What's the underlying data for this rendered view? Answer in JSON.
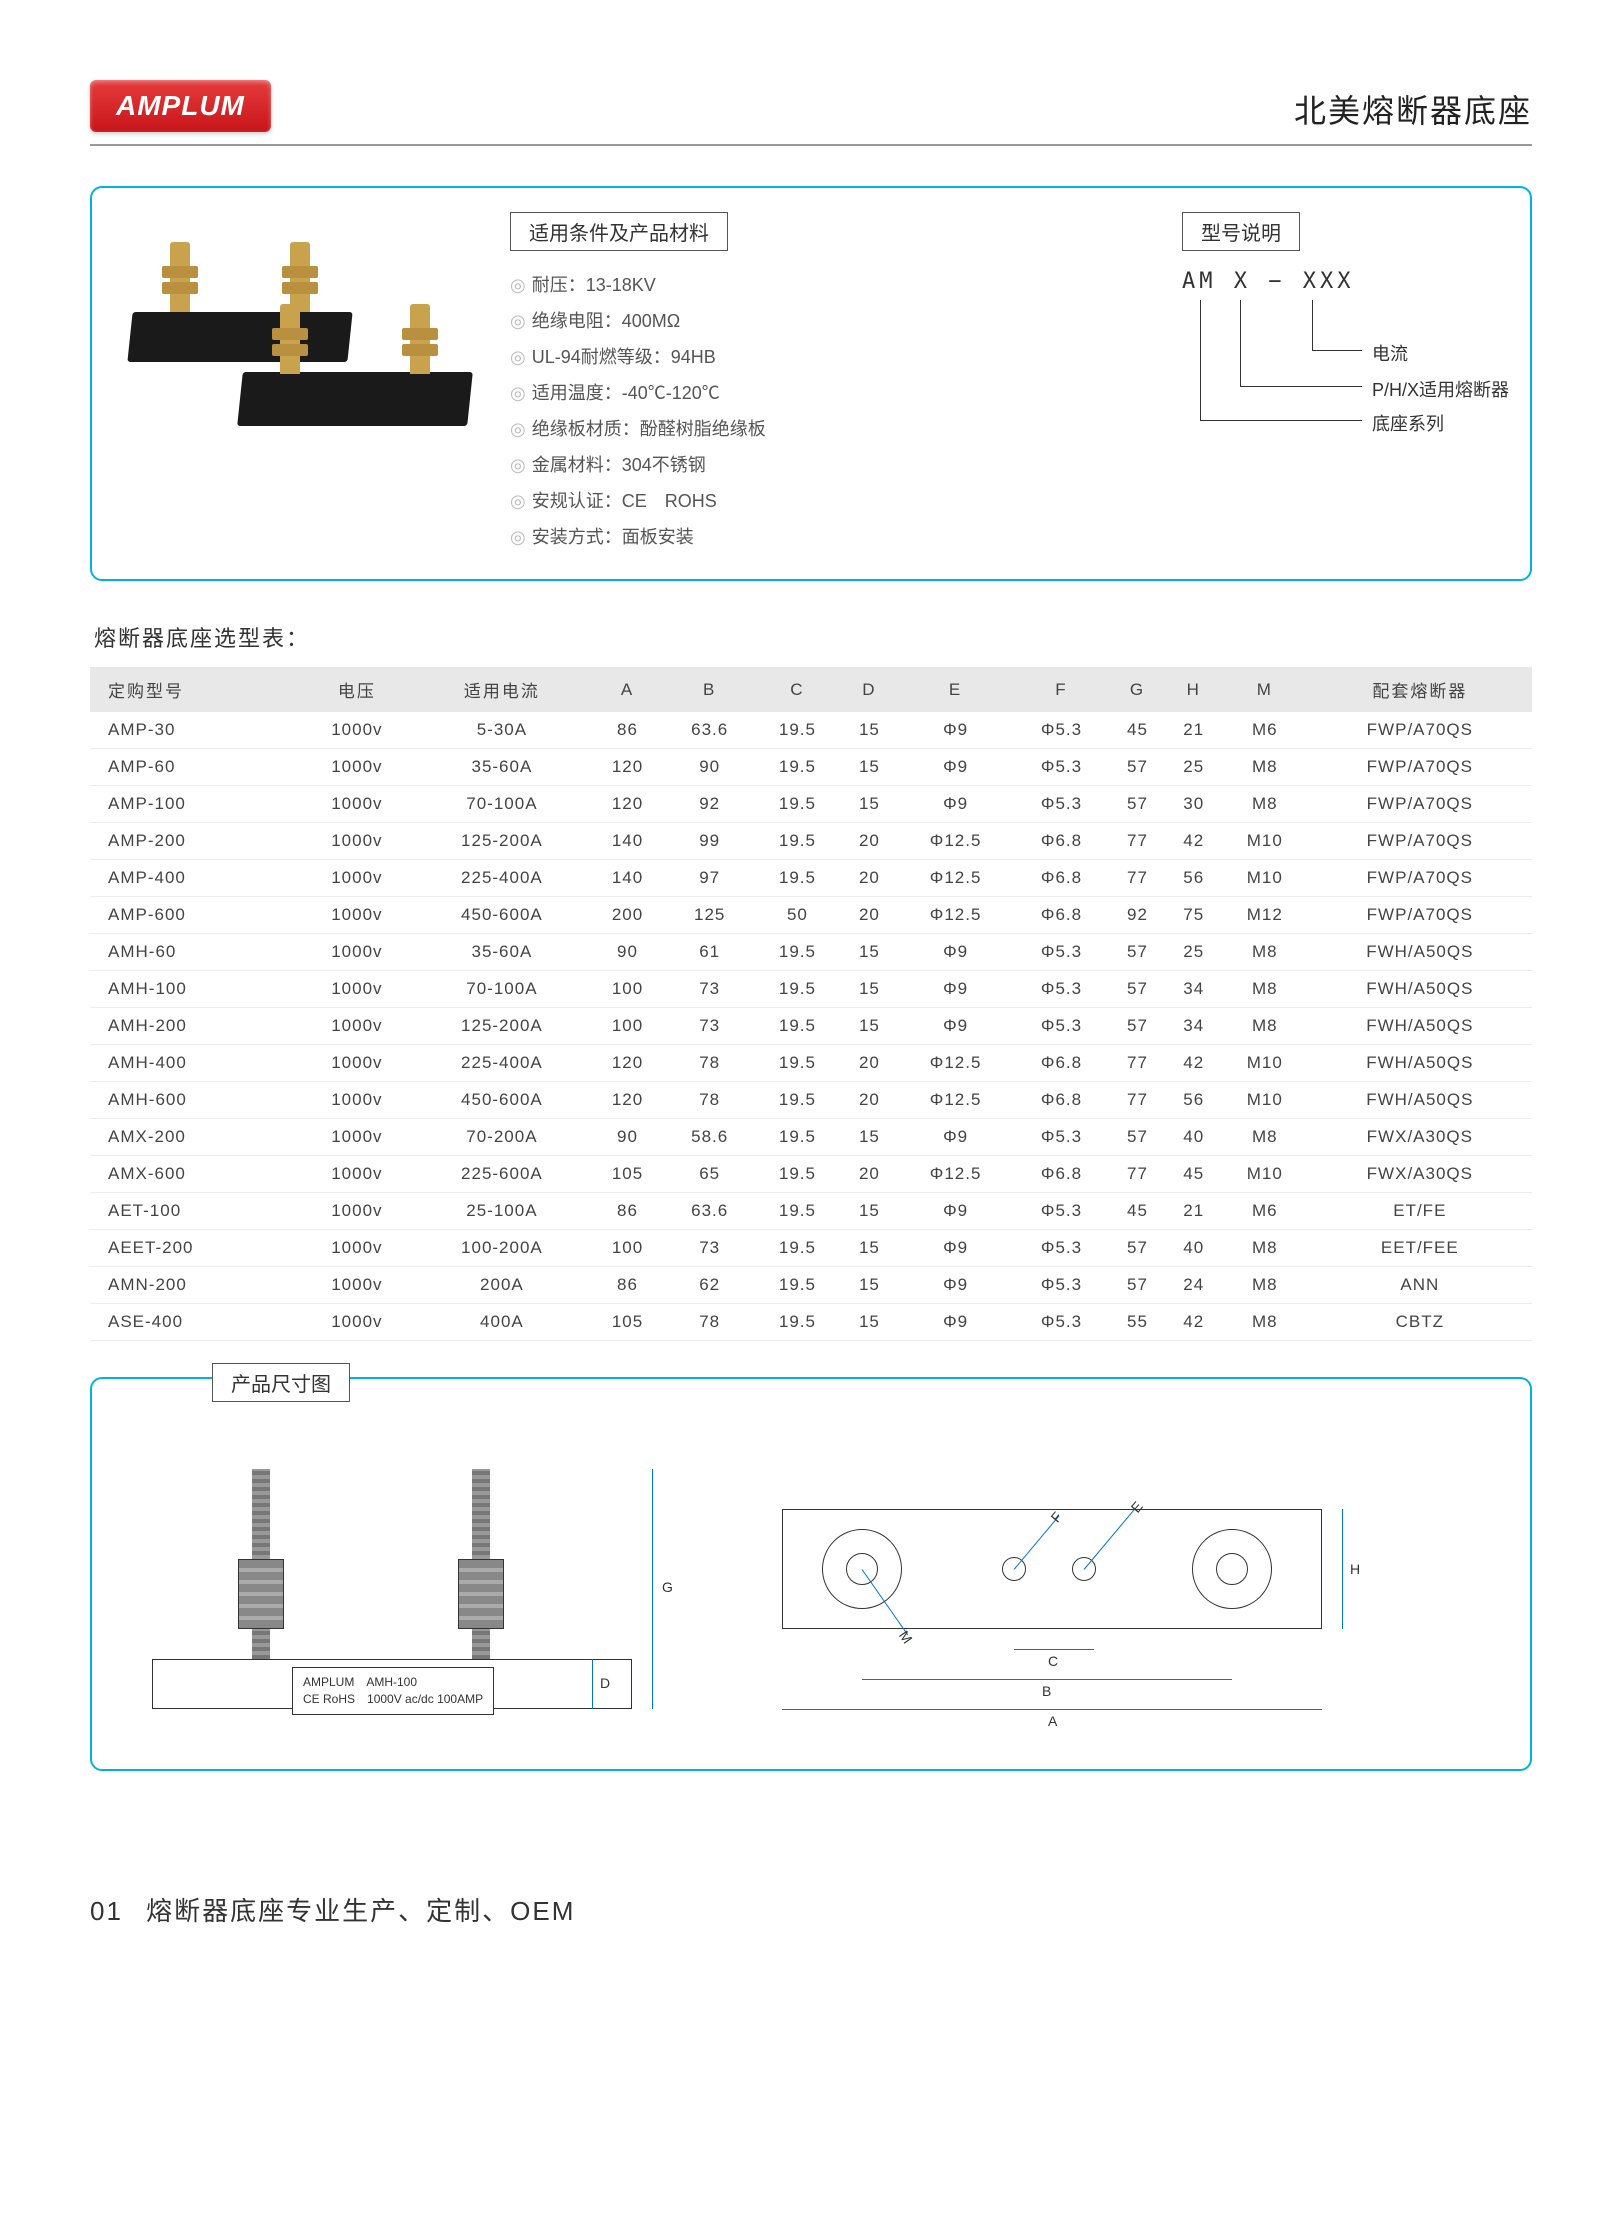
{
  "logo": "AMPLUM",
  "page_title": "北美熔断器底座",
  "panel": {
    "conditions_label": "适用条件及产品材料",
    "specs": [
      "耐压：13-18KV",
      "绝缘电阻：400MΩ",
      "UL-94耐燃等级：94HB",
      "适用温度：-40℃-120℃",
      "绝缘板材质：酚醛树脂绝缘板",
      "金属材料：304不锈钢",
      "安规认证：CE　ROHS",
      "安装方式：面板安装"
    ],
    "model_label": "型号说明",
    "model_code": "AM X − XXX",
    "model_legend": [
      "电流",
      "P/H/X适用熔断器",
      "底座系列"
    ]
  },
  "table": {
    "title": "熔断器底座选型表：",
    "columns": [
      "定购型号",
      "电压",
      "适用电流",
      "A",
      "B",
      "C",
      "D",
      "E",
      "F",
      "G",
      "H",
      "M",
      "配套熔断器"
    ],
    "rows": [
      [
        "AMP-30",
        "1000v",
        "5-30A",
        "86",
        "63.6",
        "19.5",
        "15",
        "Φ9",
        "Φ5.3",
        "45",
        "21",
        "M6",
        "FWP/A70QS"
      ],
      [
        "AMP-60",
        "1000v",
        "35-60A",
        "120",
        "90",
        "19.5",
        "15",
        "Φ9",
        "Φ5.3",
        "57",
        "25",
        "M8",
        "FWP/A70QS"
      ],
      [
        "AMP-100",
        "1000v",
        "70-100A",
        "120",
        "92",
        "19.5",
        "15",
        "Φ9",
        "Φ5.3",
        "57",
        "30",
        "M8",
        "FWP/A70QS"
      ],
      [
        "AMP-200",
        "1000v",
        "125-200A",
        "140",
        "99",
        "19.5",
        "20",
        "Φ12.5",
        "Φ6.8",
        "77",
        "42",
        "M10",
        "FWP/A70QS"
      ],
      [
        "AMP-400",
        "1000v",
        "225-400A",
        "140",
        "97",
        "19.5",
        "20",
        "Φ12.5",
        "Φ6.8",
        "77",
        "56",
        "M10",
        "FWP/A70QS"
      ],
      [
        "AMP-600",
        "1000v",
        "450-600A",
        "200",
        "125",
        "50",
        "20",
        "Φ12.5",
        "Φ6.8",
        "92",
        "75",
        "M12",
        "FWP/A70QS"
      ],
      [
        "AMH-60",
        "1000v",
        "35-60A",
        "90",
        "61",
        "19.5",
        "15",
        "Φ9",
        "Φ5.3",
        "57",
        "25",
        "M8",
        "FWH/A50QS"
      ],
      [
        "AMH-100",
        "1000v",
        "70-100A",
        "100",
        "73",
        "19.5",
        "15",
        "Φ9",
        "Φ5.3",
        "57",
        "34",
        "M8",
        "FWH/A50QS"
      ],
      [
        "AMH-200",
        "1000v",
        "125-200A",
        "100",
        "73",
        "19.5",
        "15",
        "Φ9",
        "Φ5.3",
        "57",
        "34",
        "M8",
        "FWH/A50QS"
      ],
      [
        "AMH-400",
        "1000v",
        "225-400A",
        "120",
        "78",
        "19.5",
        "20",
        "Φ12.5",
        "Φ6.8",
        "77",
        "42",
        "M10",
        "FWH/A50QS"
      ],
      [
        "AMH-600",
        "1000v",
        "450-600A",
        "120",
        "78",
        "19.5",
        "20",
        "Φ12.5",
        "Φ6.8",
        "77",
        "56",
        "M10",
        "FWH/A50QS"
      ],
      [
        "AMX-200",
        "1000v",
        "70-200A",
        "90",
        "58.6",
        "19.5",
        "15",
        "Φ9",
        "Φ5.3",
        "57",
        "40",
        "M8",
        "FWX/A30QS"
      ],
      [
        "AMX-600",
        "1000v",
        "225-600A",
        "105",
        "65",
        "19.5",
        "20",
        "Φ12.5",
        "Φ6.8",
        "77",
        "45",
        "M10",
        "FWX/A30QS"
      ],
      [
        "AET-100",
        "1000v",
        "25-100A",
        "86",
        "63.6",
        "19.5",
        "15",
        "Φ9",
        "Φ5.3",
        "45",
        "21",
        "M6",
        "ET/FE"
      ],
      [
        "AEET-200",
        "1000v",
        "100-200A",
        "100",
        "73",
        "19.5",
        "15",
        "Φ9",
        "Φ5.3",
        "57",
        "40",
        "M8",
        "EET/FEE"
      ],
      [
        "AMN-200",
        "1000v",
        "200A",
        "86",
        "62",
        "19.5",
        "15",
        "Φ9",
        "Φ5.3",
        "57",
        "24",
        "M8",
        "ANN"
      ],
      [
        "ASE-400",
        "1000v",
        "400A",
        "105",
        "78",
        "19.5",
        "15",
        "Φ9",
        "Φ5.3",
        "55",
        "42",
        "M8",
        "CBTZ"
      ]
    ]
  },
  "dimension": {
    "label": "产品尺寸图",
    "plate_line1": "AMPLUM　AMH-100",
    "plate_line2": "CE RoHS　1000V ac/dc 100AMP",
    "letters": {
      "A": "A",
      "B": "B",
      "C": "C",
      "D": "D",
      "E": "E",
      "F": "F",
      "G": "G",
      "H": "H",
      "M": "M"
    }
  },
  "footer": {
    "page": "01",
    "text": "熔断器底座专业生产、定制、OEM"
  },
  "colors": {
    "accent": "#00b4d8",
    "logo": "#d22023"
  }
}
